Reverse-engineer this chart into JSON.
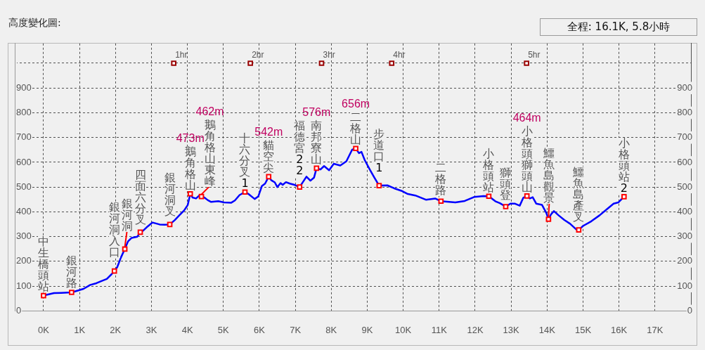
{
  "chart_data": {
    "type": "line",
    "title": "高度變化圖:",
    "subtitle": "全程: 16.1K, 5.8小時",
    "xlim": [
      -0.8,
      18
    ],
    "xticks": [
      {
        "value": 0,
        "label": "0K"
      },
      {
        "value": 1,
        "label": "1K"
      },
      {
        "value": 2,
        "label": "2K"
      },
      {
        "value": 3,
        "label": "3K"
      },
      {
        "value": 4,
        "label": "4K"
      },
      {
        "value": 5,
        "label": "5K"
      },
      {
        "value": 6,
        "label": "6K"
      },
      {
        "value": 7,
        "label": "7K"
      },
      {
        "value": 8,
        "label": "8K"
      },
      {
        "value": 9,
        "label": "9K"
      },
      {
        "value": 10,
        "label": "10K"
      },
      {
        "value": 11,
        "label": "11K"
      },
      {
        "value": 12,
        "label": "12K"
      },
      {
        "value": 13,
        "label": "13K"
      },
      {
        "value": 14,
        "label": "14K"
      },
      {
        "value": 15,
        "label": "15K"
      },
      {
        "value": 16,
        "label": "16K"
      },
      {
        "value": 17,
        "label": "17K"
      }
    ],
    "ylim": [
      0,
      1080
    ],
    "yticks": [
      0,
      100,
      200,
      300,
      400,
      500,
      600,
      700,
      800,
      900,
      {
        "value": 1000,
        "label": null
      }
    ],
    "y2lim": [
      0,
      1080
    ],
    "y2ticks": [
      0,
      100,
      200,
      300,
      400,
      500,
      600,
      700,
      800,
      900,
      {
        "value": 1000,
        "label": null
      }
    ],
    "grid": true,
    "series": [
      {
        "type": "line",
        "color": "#0000ff",
        "marker": "none",
        "x": [
          0,
          0.29,
          0.49,
          0.78,
          0.95,
          1.11,
          1.3,
          1.47,
          1.6,
          1.76,
          1.89,
          1.97,
          2.05,
          2.15,
          2.26,
          2.35,
          2.45,
          2.61,
          2.69,
          2.77,
          2.87,
          3.03,
          3.23,
          3.36,
          3.51,
          3.65,
          3.78,
          3.91,
          4.01,
          4.08,
          4.14,
          4.24,
          4.33,
          4.39,
          4.47,
          4.57,
          4.66,
          4.86,
          5.02,
          5.22,
          5.32,
          5.45,
          5.6,
          5.71,
          5.87,
          5.97,
          6.07,
          6.16,
          6.26,
          6.33,
          6.43,
          6.5,
          6.59,
          6.65,
          6.74,
          6.85,
          6.98,
          7.12,
          7.21,
          7.31,
          7.42,
          7.52,
          7.59,
          7.7,
          7.8,
          7.94,
          8.07,
          8.25,
          8.42,
          8.58,
          8.68,
          8.77,
          8.84,
          8.93,
          9.07,
          9.2,
          9.33,
          9.56,
          9.75,
          9.95,
          10.11,
          10.34,
          10.63,
          10.89,
          11.05,
          11.45,
          11.71,
          11.97,
          12.23,
          12.38,
          12.56,
          12.69,
          12.85,
          12.98,
          13.11,
          13.24,
          13.34,
          13.44,
          13.52,
          13.6,
          13.7,
          13.86,
          13.98,
          14.04,
          14.11,
          14.19,
          14.32,
          14.48,
          14.64,
          14.81,
          14.88,
          15.0,
          15.23,
          15.46,
          15.65,
          15.85,
          15.98,
          16.14
        ],
        "values": [
          62,
          72,
          73,
          75,
          82,
          89,
          105,
          112,
          120,
          129,
          148,
          161,
          177,
          215,
          250,
          281,
          295,
          300,
          318,
          324,
          338,
          357,
          349,
          348,
          349,
          367,
          387,
          406,
          428,
          473,
          458,
          454,
          466,
          462,
          458,
          447,
          440,
          443,
          438,
          437,
          446,
          468,
          480,
          471,
          452,
          462,
          504,
          514,
          542,
          528,
          519,
          500,
          516,
          509,
          520,
          514,
          509,
          500,
          520,
          542,
          526,
          538,
          576,
          571,
          585,
          568,
          594,
          587,
          604,
          651,
          656,
          637,
          642,
          609,
          571,
          538,
          506,
          507,
          495,
          485,
          473,
          466,
          449,
          454,
          443,
          438,
          444,
          460,
          464,
          463,
          443,
          435,
          421,
          433,
          433,
          425,
          457,
          464,
          454,
          459,
          433,
          428,
          395,
          370,
          390,
          403,
          386,
          367,
          352,
          329,
          327,
          343,
          362,
          386,
          409,
          433,
          438,
          461
        ]
      },
      {
        "type": "scatter",
        "color": "#ff0000",
        "marker": "square",
        "x": [
          0,
          0.78,
          1.97,
          2.26,
          2.69,
          3.51,
          4.08,
          4.39,
          5.6,
          6.26,
          7.12,
          7.59,
          8.68,
          9.33,
          11.05,
          12.38,
          12.85,
          13.44,
          14.04,
          14.88,
          16.14
        ],
        "values": [
          62,
          75,
          161,
          250,
          318,
          349,
          473,
          462,
          480,
          542,
          500,
          576,
          656,
          506,
          443,
          463,
          421,
          464,
          370,
          327,
          461
        ]
      },
      {
        "type": "scatter",
        "color": "#990000",
        "marker": "square",
        "x": [
          3.62,
          5.75,
          7.73,
          9.68,
          13.43
        ],
        "values": [
          1000,
          1000,
          1000,
          1000,
          1000
        ]
      }
    ],
    "annotations": [
      {
        "text": "中生橋頭站",
        "x": 0,
        "y": 62
      },
      {
        "text": "銀河路",
        "x": 0.78,
        "y": 75
      },
      {
        "text": "銀河洞入口",
        "x": 1.97,
        "y": 161
      },
      {
        "text": "銀河洞",
        "x": 2.26,
        "y": 250
      },
      {
        "text": "四面六分叉",
        "x": 2.69,
        "y": 318
      },
      {
        "text": "銀河洞叉",
        "x": 3.51,
        "y": 349
      },
      {
        "text": "鵝角格山",
        "x": 4.08,
        "y": 473
      },
      {
        "text": "鵝角格山東峰",
        "x": 4.39,
        "y": 462
      },
      {
        "text": "十六分叉1",
        "x": 5.6,
        "y": 480
      },
      {
        "text": "貓空尖",
        "x": 6.26,
        "y": 542
      },
      {
        "text": "福德宮22",
        "x": 7.12,
        "y": 500
      },
      {
        "text": "南邦寮山",
        "x": 7.59,
        "y": 576
      },
      {
        "text": "二格山",
        "x": 8.68,
        "y": 656
      },
      {
        "text": "步道口1",
        "x": 9.33,
        "y": 506
      },
      {
        "text": "二格路",
        "x": 11.05,
        "y": 443
      },
      {
        "text": "小格頭站",
        "x": 12.38,
        "y": 463
      },
      {
        "text": "獅頭登",
        "x": 12.85,
        "y": 421
      },
      {
        "text": "小格頭獅頭山",
        "x": 13.44,
        "y": 464
      },
      {
        "text": "鱷魚島觀景",
        "x": 14.04,
        "y": 370
      },
      {
        "text": "鱷魚島產叉",
        "x": 14.88,
        "y": 327
      },
      {
        "text": "小格頭站2",
        "x": 16.14,
        "y": 461
      },
      "473m",
      "462m",
      "542m",
      "576m",
      "656m",
      "464m",
      {
        "text": "1hr",
        "x": 3.62,
        "y": 1000
      },
      {
        "text": "2hr",
        "x": 5.75,
        "y": 1000
      },
      {
        "text": "3hr",
        "x": 7.73,
        "y": 1000
      },
      {
        "text": "4hr",
        "x": 9.68,
        "y": 1000
      },
      {
        "text": "5hr",
        "x": 13.43,
        "y": 1000
      }
    ]
  }
}
